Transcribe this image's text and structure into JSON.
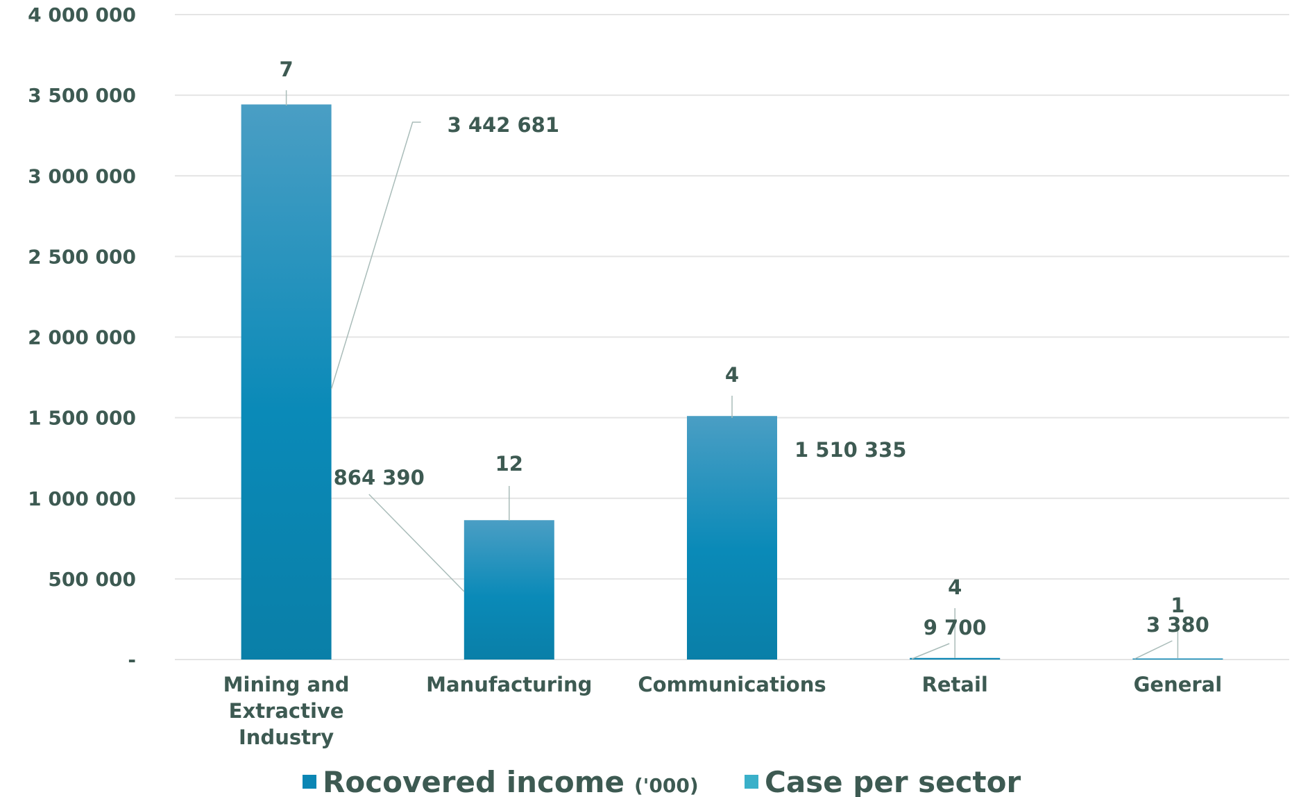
{
  "chart_data": {
    "type": "bar",
    "categories": [
      [
        "Mining and",
        "Extractive",
        "Industry"
      ],
      [
        "Manufacturing"
      ],
      [
        "Communications"
      ],
      [
        "Retail"
      ],
      [
        "General"
      ]
    ],
    "series": [
      {
        "name": "Rocovered income",
        "name_suffix": "('000)",
        "values": [
          3442681,
          864390,
          1510335,
          9700,
          3380
        ],
        "labels": [
          "3 442 681",
          "864 390",
          "1 510 335",
          "9 700",
          "3 380"
        ],
        "color": "#0b86b4"
      },
      {
        "name": "Case per sector",
        "values": [
          7,
          12,
          4,
          4,
          1
        ],
        "labels": [
          "7",
          "12",
          "4",
          "4",
          "1"
        ],
        "color": "#3ab0c9"
      }
    ],
    "ylim": [
      0,
      4000000
    ],
    "yticks": [
      {
        "value": 4000000,
        "label": "4 000 000"
      },
      {
        "value": 3500000,
        "label": "3 500 000"
      },
      {
        "value": 3000000,
        "label": "3 000 000"
      },
      {
        "value": 2500000,
        "label": "2 500 000"
      },
      {
        "value": 2000000,
        "label": "2 000 000"
      },
      {
        "value": 1500000,
        "label": "1 500 000"
      },
      {
        "value": 1000000,
        "label": "1 000 000"
      },
      {
        "value": 500000,
        "label": "500 000"
      },
      {
        "value": 0,
        "label": "-"
      }
    ],
    "grid": true,
    "legend_position": "bottom",
    "title": "",
    "xlabel": "",
    "ylabel": ""
  }
}
